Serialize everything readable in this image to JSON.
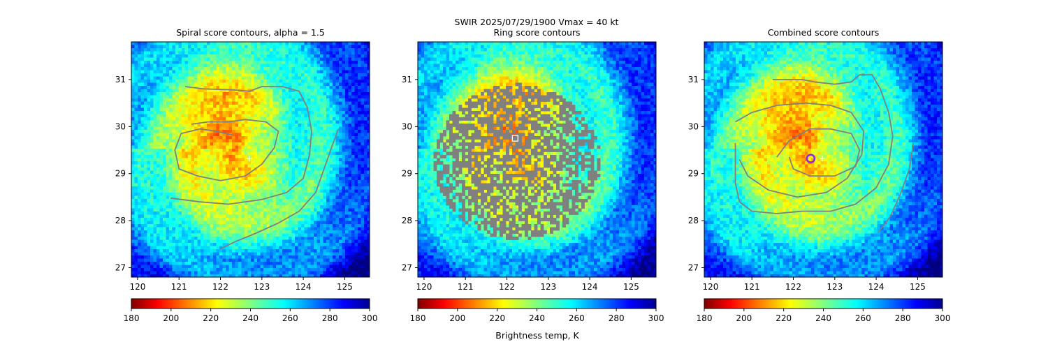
{
  "figure": {
    "suptitle": "SWIR  2025/07/29/1900    Vmax = 40 kt",
    "colorbar_label": "Brightness temp, K"
  },
  "chart_data": [
    {
      "type": "heatmap",
      "title": "Spiral score contours, alpha =  1.5",
      "xlim": [
        119.85,
        125.6
      ],
      "ylim": [
        26.8,
        31.8
      ],
      "xticks": [
        120,
        121,
        122,
        123,
        124,
        125
      ],
      "yticks": [
        27,
        28,
        29,
        30,
        31
      ],
      "colorbar": {
        "colormap": "jet_r",
        "range": [
          180,
          300
        ],
        "ticks": [
          180,
          200,
          220,
          240,
          260,
          280,
          300
        ]
      },
      "markers": [
        {
          "kind": "plus",
          "color": "#ffffff",
          "lon": 122.7,
          "lat": 29.32
        }
      ],
      "contour_color": "#808080",
      "contours": [
        [
          [
            121.15,
            30.85
          ],
          [
            121.6,
            30.8
          ],
          [
            122.3,
            30.78
          ],
          [
            122.7,
            30.75
          ],
          [
            123.0,
            30.85
          ],
          [
            123.5,
            30.85
          ],
          [
            123.9,
            30.75
          ],
          [
            124.1,
            30.4
          ],
          [
            124.2,
            29.9
          ],
          [
            124.15,
            29.4
          ],
          [
            124.0,
            28.9
          ],
          [
            123.6,
            28.6
          ],
          [
            123.0,
            28.45
          ],
          [
            122.2,
            28.35
          ],
          [
            121.5,
            28.4
          ],
          [
            120.8,
            28.48
          ]
        ],
        [
          [
            122.3,
            29.82
          ],
          [
            121.9,
            29.9
          ],
          [
            121.5,
            29.95
          ],
          [
            121.05,
            29.85
          ],
          [
            120.9,
            29.5
          ],
          [
            121.0,
            29.1
          ],
          [
            121.45,
            28.95
          ],
          [
            122.0,
            28.85
          ],
          [
            122.6,
            28.95
          ],
          [
            123.0,
            29.2
          ],
          [
            123.3,
            29.55
          ],
          [
            123.4,
            29.9
          ],
          [
            123.1,
            30.1
          ],
          [
            122.6,
            30.15
          ],
          [
            122.2,
            30.1
          ],
          [
            121.7,
            30.1
          ],
          [
            121.3,
            30.05
          ]
        ],
        [
          [
            124.85,
            29.95
          ],
          [
            124.7,
            29.6
          ],
          [
            124.5,
            29.1
          ],
          [
            124.3,
            28.6
          ],
          [
            123.9,
            28.2
          ],
          [
            123.4,
            27.95
          ],
          [
            122.9,
            27.75
          ],
          [
            122.35,
            27.55
          ],
          [
            122.0,
            27.4
          ]
        ]
      ]
    },
    {
      "type": "heatmap",
      "title": "Ring score contours",
      "xlim": [
        119.85,
        125.6
      ],
      "ylim": [
        26.8,
        31.8
      ],
      "xticks": [
        120,
        121,
        122,
        123,
        124,
        125
      ],
      "yticks": [
        27,
        28,
        29,
        30,
        31
      ],
      "colorbar": {
        "colormap": "jet_r",
        "range": [
          180,
          300
        ],
        "ticks": [
          180,
          200,
          220,
          240,
          260,
          280,
          300
        ]
      },
      "markers": [
        {
          "kind": "square",
          "color": "#ffffff",
          "lon": 122.2,
          "lat": 29.75
        }
      ],
      "ring_region": {
        "center_lon": 122.25,
        "center_lat": 29.25,
        "radius_lon": 2.0,
        "radius_lat": 1.65
      },
      "contour_color": "#808080"
    },
    {
      "type": "heatmap",
      "title": "Combined score contours",
      "xlim": [
        119.85,
        125.6
      ],
      "ylim": [
        26.8,
        31.8
      ],
      "xticks": [
        120,
        121,
        122,
        123,
        124,
        125
      ],
      "yticks": [
        27,
        28,
        29,
        30,
        31
      ],
      "colorbar": {
        "colormap": "jet_r",
        "range": [
          180,
          300
        ],
        "ticks": [
          180,
          200,
          220,
          240,
          260,
          280,
          300
        ]
      },
      "markers": [
        {
          "kind": "circle",
          "color": "#8a2be2",
          "lon": 122.42,
          "lat": 29.32
        },
        {
          "kind": "plus",
          "color": "#ffffff",
          "lon": 122.7,
          "lat": 29.32
        }
      ],
      "contour_color": "#808080",
      "contours": [
        [
          [
            121.5,
            31.0
          ],
          [
            122.2,
            31.0
          ],
          [
            122.5,
            30.95
          ],
          [
            123.0,
            30.9
          ],
          [
            123.4,
            30.95
          ],
          [
            123.6,
            31.1
          ],
          [
            123.9,
            31.1
          ],
          [
            124.1,
            30.8
          ],
          [
            124.3,
            30.3
          ],
          [
            124.4,
            29.8
          ],
          [
            124.3,
            29.2
          ],
          [
            124.0,
            28.7
          ],
          [
            123.5,
            28.35
          ],
          [
            122.9,
            28.2
          ],
          [
            122.2,
            28.2
          ],
          [
            121.6,
            28.15
          ],
          [
            121.0,
            28.2
          ],
          [
            120.7,
            28.4
          ],
          [
            120.6,
            28.8
          ],
          [
            120.6,
            29.3
          ],
          [
            120.6,
            29.65
          ]
        ],
        [
          [
            120.6,
            30.1
          ],
          [
            121.0,
            30.3
          ],
          [
            121.6,
            30.45
          ],
          [
            122.3,
            30.5
          ],
          [
            122.9,
            30.45
          ],
          [
            123.4,
            30.3
          ],
          [
            123.7,
            29.9
          ],
          [
            123.65,
            29.4
          ],
          [
            123.3,
            28.9
          ],
          [
            122.8,
            28.6
          ],
          [
            122.1,
            28.5
          ],
          [
            121.4,
            28.65
          ],
          [
            120.9,
            28.95
          ],
          [
            120.7,
            29.3
          ]
        ],
        [
          [
            121.6,
            29.35
          ],
          [
            121.9,
            29.7
          ],
          [
            122.4,
            29.95
          ],
          [
            122.9,
            29.95
          ],
          [
            123.4,
            29.85
          ],
          [
            123.6,
            29.5
          ],
          [
            123.5,
            29.15
          ],
          [
            123.0,
            28.95
          ],
          [
            122.4,
            28.95
          ],
          [
            122.0,
            29.1
          ],
          [
            121.9,
            29.35
          ]
        ],
        [
          [
            124.9,
            29.65
          ],
          [
            124.8,
            29.1
          ],
          [
            124.6,
            28.6
          ],
          [
            124.35,
            28.1
          ],
          [
            124.05,
            27.75
          ]
        ]
      ]
    }
  ]
}
